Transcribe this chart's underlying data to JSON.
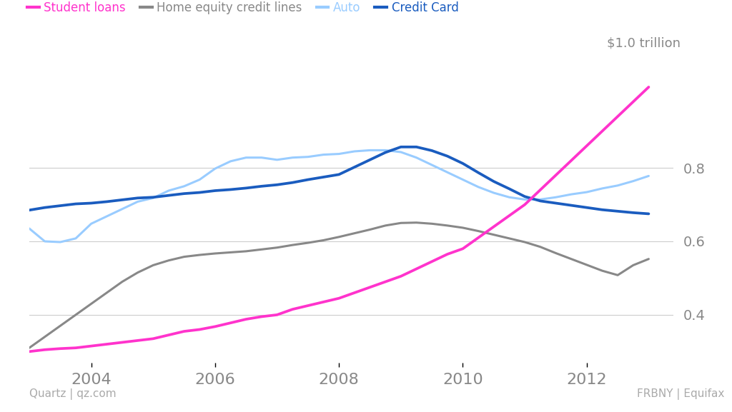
{
  "title_annotation": "$1.0 trillion",
  "legend_labels": [
    "Student loans",
    "Home equity credit lines",
    "Auto",
    "Credit Card"
  ],
  "legend_colors": [
    "#ff33cc",
    "#888888",
    "#99ccff",
    "#1a5cbf"
  ],
  "source_left": "Quartz | qz.com",
  "source_right": "FRBNY | Equifax",
  "background_color": "#ffffff",
  "grid_color": "#cccccc",
  "ytick_color": "#888888",
  "xtick_color": "#888888",
  "yticks": [
    0.4,
    0.6,
    0.8
  ],
  "ytick_labels": [
    "0.4",
    "0.6",
    "0.8"
  ],
  "xticks": [
    2004,
    2006,
    2008,
    2010,
    2012
  ],
  "xlim": [
    2003.0,
    2013.4
  ],
  "ylim": [
    0.27,
    1.1
  ],
  "x": [
    2003.0,
    2003.25,
    2003.5,
    2003.75,
    2004.0,
    2004.25,
    2004.5,
    2004.75,
    2005.0,
    2005.25,
    2005.5,
    2005.75,
    2006.0,
    2006.25,
    2006.5,
    2006.75,
    2007.0,
    2007.25,
    2007.5,
    2007.75,
    2008.0,
    2008.25,
    2008.5,
    2008.75,
    2009.0,
    2009.25,
    2009.5,
    2009.75,
    2010.0,
    2010.25,
    2010.5,
    2010.75,
    2011.0,
    2011.25,
    2011.5,
    2011.75,
    2012.0,
    2012.25,
    2012.5,
    2012.75,
    2013.0
  ],
  "student_loans": [
    0.3,
    0.305,
    0.308,
    0.31,
    0.315,
    0.32,
    0.325,
    0.33,
    0.335,
    0.345,
    0.355,
    0.36,
    0.368,
    0.378,
    0.388,
    0.395,
    0.4,
    0.415,
    0.425,
    0.435,
    0.445,
    0.46,
    0.475,
    0.49,
    0.505,
    0.525,
    0.545,
    0.565,
    0.58,
    0.61,
    0.64,
    0.67,
    0.7,
    0.74,
    0.78,
    0.82,
    0.86,
    0.9,
    0.94,
    0.98,
    1.02
  ],
  "home_equity": [
    0.31,
    0.34,
    0.37,
    0.4,
    0.43,
    0.46,
    0.49,
    0.515,
    0.535,
    0.548,
    0.558,
    0.563,
    0.567,
    0.57,
    0.573,
    0.578,
    0.583,
    0.59,
    0.596,
    0.603,
    0.612,
    0.622,
    0.632,
    0.643,
    0.65,
    0.651,
    0.648,
    0.643,
    0.637,
    0.628,
    0.618,
    0.608,
    0.598,
    0.585,
    0.568,
    0.552,
    0.536,
    0.52,
    0.508,
    0.535,
    0.552
  ],
  "auto": [
    0.635,
    0.6,
    0.598,
    0.608,
    0.648,
    0.668,
    0.688,
    0.708,
    0.718,
    0.738,
    0.75,
    0.768,
    0.798,
    0.818,
    0.828,
    0.828,
    0.822,
    0.828,
    0.83,
    0.836,
    0.838,
    0.845,
    0.848,
    0.848,
    0.843,
    0.828,
    0.808,
    0.788,
    0.768,
    0.748,
    0.732,
    0.72,
    0.714,
    0.714,
    0.72,
    0.728,
    0.734,
    0.744,
    0.752,
    0.764,
    0.778
  ],
  "credit_card": [
    0.685,
    0.692,
    0.697,
    0.702,
    0.704,
    0.708,
    0.713,
    0.718,
    0.72,
    0.725,
    0.73,
    0.733,
    0.738,
    0.741,
    0.745,
    0.75,
    0.754,
    0.76,
    0.768,
    0.775,
    0.782,
    0.802,
    0.822,
    0.842,
    0.857,
    0.857,
    0.847,
    0.832,
    0.812,
    0.787,
    0.763,
    0.743,
    0.722,
    0.71,
    0.704,
    0.698,
    0.692,
    0.686,
    0.682,
    0.678,
    0.675
  ]
}
